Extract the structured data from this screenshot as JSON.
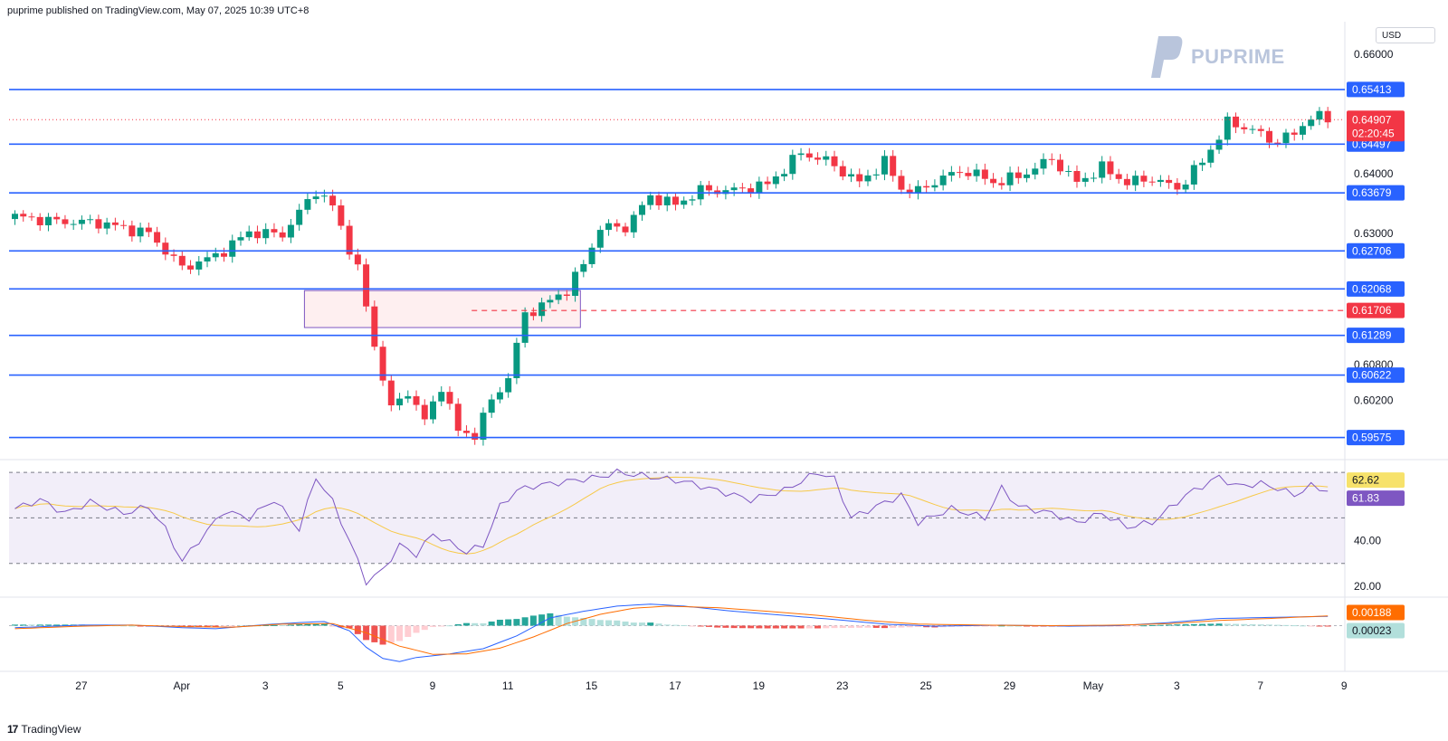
{
  "header": {
    "publisher_line": "puprime published on TradingView.com, May 07, 2025 10:39 UTC+8"
  },
  "footer": {
    "logo_glyph": "17",
    "brand": "TradingView"
  },
  "watermark": {
    "brand": "PUPRIME"
  },
  "currency": "USD",
  "colors": {
    "up": "#089981",
    "down": "#f23645",
    "level": "#2962ff",
    "current_price_bg": "#f23645",
    "rsi": "#7e57c2",
    "rsi_ma": "#f7c948",
    "macd": "#2962ff",
    "signal": "#ff6d00",
    "hist_pos": "#26a69a",
    "hist_neg": "#ef5350"
  },
  "chart_data": [
    {
      "type": "candlestick",
      "symbol_quote": "USD",
      "ylim": [
        0.5925,
        0.6655
      ],
      "y_ticks": [
        "0.66000",
        "0.64000",
        "0.63000",
        "0.60800",
        "0.60200"
      ],
      "x_labels": [
        "27",
        "Apr",
        "3",
        "5",
        "9",
        "11",
        "15",
        "17",
        "19",
        "23",
        "25",
        "29",
        "May",
        "3",
        "7",
        "9"
      ],
      "x_label_bars": [
        8,
        20,
        30,
        39,
        50,
        59,
        69,
        79,
        89,
        99,
        109,
        119,
        129,
        139,
        149,
        159
      ],
      "levels": [
        {
          "value": 0.65413,
          "label": "0.65413"
        },
        {
          "value": 0.64497,
          "label": "0.64497"
        },
        {
          "value": 0.63679,
          "label": "0.63679"
        },
        {
          "value": 0.62706,
          "label": "0.62706"
        },
        {
          "value": 0.62068,
          "label": "0.62068"
        },
        {
          "value": 0.61289,
          "label": "0.61289"
        },
        {
          "value": 0.60622,
          "label": "0.60622"
        },
        {
          "value": 0.59575,
          "label": "0.59575"
        }
      ],
      "dashed_level": {
        "value": 0.61706,
        "label": "0.61706"
      },
      "current_price": {
        "value": 0.64907,
        "label": "0.64907",
        "countdown": "02:20:45"
      },
      "zone": {
        "from_bar": 35,
        "to_bar": 68,
        "low": 0.6142,
        "high": 0.6204
      },
      "anchors": [
        [
          0,
          0.6328
        ],
        [
          5,
          0.632
        ],
        [
          10,
          0.6318
        ],
        [
          16,
          0.63
        ],
        [
          20,
          0.6242
        ],
        [
          24,
          0.6262
        ],
        [
          28,
          0.6302
        ],
        [
          32,
          0.6298
        ],
        [
          36,
          0.6372
        ],
        [
          38,
          0.6345
        ],
        [
          41,
          0.624
        ],
        [
          43,
          0.6112
        ],
        [
          45,
          0.6005
        ],
        [
          47,
          0.6035
        ],
        [
          49,
          0.5985
        ],
        [
          51,
          0.6045
        ],
        [
          53,
          0.5968
        ],
        [
          55,
          0.5962
        ],
        [
          57,
          0.602
        ],
        [
          59,
          0.6058
        ],
        [
          61,
          0.6165
        ],
        [
          63,
          0.6178
        ],
        [
          66,
          0.6205
        ],
        [
          68,
          0.6248
        ],
        [
          70,
          0.631
        ],
        [
          73,
          0.631
        ],
        [
          76,
          0.6362
        ],
        [
          79,
          0.6348
        ],
        [
          82,
          0.6372
        ],
        [
          86,
          0.6372
        ],
        [
          90,
          0.6382
        ],
        [
          94,
          0.6435
        ],
        [
          97,
          0.6422
        ],
        [
          101,
          0.6385
        ],
        [
          104,
          0.642
        ],
        [
          106,
          0.6375
        ],
        [
          108,
          0.637
        ],
        [
          111,
          0.6395
        ],
        [
          114,
          0.6405
        ],
        [
          117,
          0.6385
        ],
        [
          120,
          0.6395
        ],
        [
          124,
          0.6425
        ],
        [
          127,
          0.6385
        ],
        [
          130,
          0.641
        ],
        [
          133,
          0.6385
        ],
        [
          136,
          0.6392
        ],
        [
          139,
          0.6375
        ],
        [
          142,
          0.642
        ],
        [
          145,
          0.6485
        ],
        [
          148,
          0.6475
        ],
        [
          150,
          0.6455
        ],
        [
          153,
          0.6465
        ],
        [
          155,
          0.6498
        ],
        [
          157,
          0.649
        ]
      ],
      "last_bar": 157
    },
    {
      "type": "line",
      "name": "RSI",
      "ylim": [
        16,
        74
      ],
      "y_ticks": [
        "40.00",
        "20.00"
      ],
      "bands": [
        30,
        50,
        70
      ],
      "rsi_value": {
        "value": 61.83,
        "label": "61.83"
      },
      "rsi_ma_value": {
        "value": 62.62,
        "label": "62.62"
      },
      "rsi_anchors": [
        [
          0,
          54
        ],
        [
          3,
          58
        ],
        [
          6,
          52
        ],
        [
          9,
          57
        ],
        [
          13,
          52
        ],
        [
          16,
          55
        ],
        [
          18,
          45
        ],
        [
          20,
          31
        ],
        [
          22,
          40
        ],
        [
          25,
          53
        ],
        [
          28,
          50
        ],
        [
          31,
          58
        ],
        [
          34,
          45
        ],
        [
          36,
          68
        ],
        [
          38,
          57
        ],
        [
          40,
          40
        ],
        [
          42,
          22
        ],
        [
          44,
          27
        ],
        [
          46,
          38
        ],
        [
          48,
          34
        ],
        [
          50,
          43
        ],
        [
          52,
          39
        ],
        [
          54,
          35
        ],
        [
          56,
          38
        ],
        [
          58,
          55
        ],
        [
          60,
          62
        ],
        [
          62,
          64
        ],
        [
          66,
          66
        ],
        [
          70,
          68
        ],
        [
          72,
          70
        ],
        [
          76,
          68
        ],
        [
          80,
          66
        ],
        [
          84,
          62
        ],
        [
          88,
          58
        ],
        [
          92,
          62
        ],
        [
          96,
          70
        ],
        [
          98,
          67
        ],
        [
          100,
          50
        ],
        [
          103,
          55
        ],
        [
          106,
          60
        ],
        [
          108,
          48
        ],
        [
          112,
          54
        ],
        [
          116,
          50
        ],
        [
          118,
          63
        ],
        [
          120,
          55
        ],
        [
          124,
          52
        ],
        [
          127,
          48
        ],
        [
          130,
          52
        ],
        [
          133,
          46
        ],
        [
          136,
          48
        ],
        [
          140,
          60
        ],
        [
          144,
          68
        ],
        [
          146,
          64
        ],
        [
          149,
          65
        ],
        [
          151,
          63
        ],
        [
          153,
          60
        ],
        [
          155,
          64
        ],
        [
          157,
          62
        ]
      ]
    },
    {
      "type": "bar",
      "name": "MACD",
      "ylim": [
        -0.0082,
        0.0052
      ],
      "macd_value": {
        "value": 0.00188,
        "label": "0.00188"
      },
      "hist_value": {
        "value": 0.00023,
        "label": "0.00023"
      },
      "macd_anchors": [
        [
          0,
          -0.0004
        ],
        [
          8,
          0.0001
        ],
        [
          14,
          0.0001
        ],
        [
          20,
          -0.0004
        ],
        [
          24,
          -0.0006
        ],
        [
          30,
          0.0002
        ],
        [
          34,
          0.0006
        ],
        [
          37,
          0.0008
        ],
        [
          40,
          -0.001
        ],
        [
          42,
          -0.0042
        ],
        [
          44,
          -0.0064
        ],
        [
          46,
          -0.007
        ],
        [
          48,
          -0.0062
        ],
        [
          52,
          -0.0055
        ],
        [
          56,
          -0.0045
        ],
        [
          60,
          -0.002
        ],
        [
          64,
          0.0015
        ],
        [
          68,
          0.0028
        ],
        [
          72,
          0.0038
        ],
        [
          76,
          0.0042
        ],
        [
          80,
          0.0038
        ],
        [
          86,
          0.0028
        ],
        [
          92,
          0.002
        ],
        [
          98,
          0.0012
        ],
        [
          104,
          0.0003
        ],
        [
          110,
          -0.0001
        ],
        [
          118,
          0.0001
        ],
        [
          126,
          -0.0001
        ],
        [
          132,
          0.0
        ],
        [
          138,
          0.0006
        ],
        [
          144,
          0.0014
        ],
        [
          150,
          0.0016
        ],
        [
          157,
          0.0018
        ]
      ],
      "signal_anchors": [
        [
          0,
          -0.0006
        ],
        [
          8,
          -0.0001
        ],
        [
          14,
          0.0001
        ],
        [
          20,
          -0.0002
        ],
        [
          26,
          -0.0003
        ],
        [
          32,
          0.0003
        ],
        [
          38,
          0.0004
        ],
        [
          42,
          -0.0014
        ],
        [
          46,
          -0.004
        ],
        [
          50,
          -0.0056
        ],
        [
          54,
          -0.0055
        ],
        [
          58,
          -0.0044
        ],
        [
          62,
          -0.0022
        ],
        [
          66,
          0.0004
        ],
        [
          70,
          0.0022
        ],
        [
          74,
          0.0034
        ],
        [
          78,
          0.0038
        ],
        [
          84,
          0.0035
        ],
        [
          90,
          0.0028
        ],
        [
          96,
          0.002
        ],
        [
          102,
          0.001
        ],
        [
          108,
          0.0003
        ],
        [
          116,
          0.0001
        ],
        [
          124,
          0.0
        ],
        [
          132,
          0.0001
        ],
        [
          138,
          0.0004
        ],
        [
          144,
          0.001
        ],
        [
          150,
          0.0014
        ],
        [
          157,
          0.0019
        ]
      ]
    }
  ]
}
